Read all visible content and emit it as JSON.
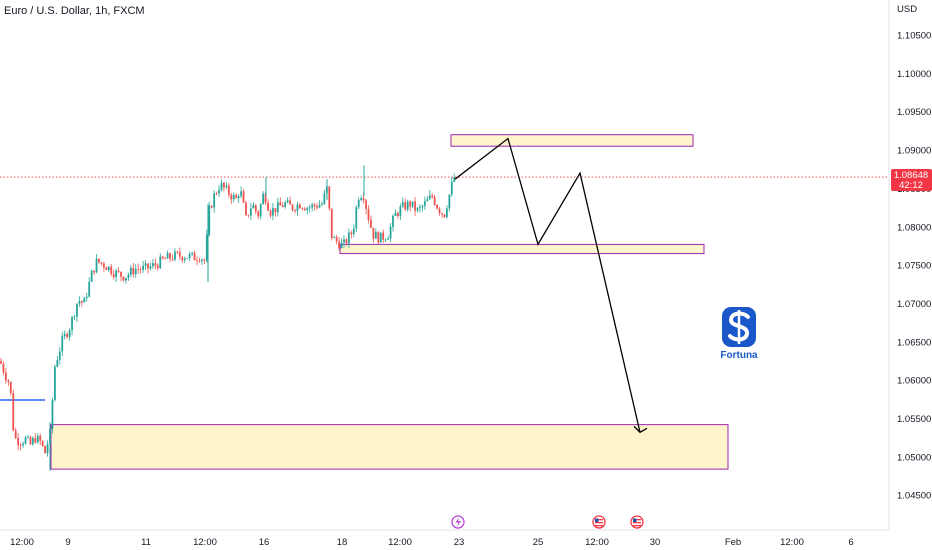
{
  "chart_data": {
    "type": "candlestick",
    "title": "Euro / U.S. Dollar, 1h, FXCM",
    "currency_label": "USD",
    "y_ticks": [
      "1.10500",
      "1.10000",
      "1.09500",
      "1.09000",
      "1.08500",
      "1.08000",
      "1.07500",
      "1.07000",
      "1.06500",
      "1.06000",
      "1.05500",
      "1.05000",
      "1.04500"
    ],
    "y_tick_values": [
      1.105,
      1.1,
      1.095,
      1.09,
      1.085,
      1.08,
      1.075,
      1.07,
      1.065,
      1.06,
      1.055,
      1.05,
      1.045
    ],
    "ylim": [
      1.0435,
      1.1095
    ],
    "x_ticks": [
      "12:00",
      "9",
      "11",
      "12:00",
      "16",
      "18",
      "12:00",
      "23",
      "25",
      "12:00",
      "30",
      "Feb",
      "12:00",
      "6"
    ],
    "last_price": {
      "value": 1.08648,
      "label": "1.08648",
      "countdown": "42:12"
    },
    "price_path": [
      [
        0,
        1.0625
      ],
      [
        6,
        1.0605
      ],
      [
        10,
        1.0595
      ],
      [
        14,
        1.0525
      ],
      [
        20,
        1.052
      ],
      [
        26,
        1.0523
      ],
      [
        30,
        1.0515
      ],
      [
        35,
        1.0525
      ],
      [
        40,
        1.052
      ],
      [
        45,
        1.0505
      ],
      [
        50,
        1.053
      ],
      [
        55,
        1.062
      ],
      [
        62,
        1.065
      ],
      [
        70,
        1.067
      ],
      [
        78,
        1.0705
      ],
      [
        84,
        1.07
      ],
      [
        92,
        1.074
      ],
      [
        97,
        1.0755
      ],
      [
        105,
        1.075
      ],
      [
        115,
        1.074
      ],
      [
        125,
        1.0735
      ],
      [
        135,
        1.0745
      ],
      [
        145,
        1.0745
      ],
      [
        155,
        1.075
      ],
      [
        165,
        1.0758
      ],
      [
        175,
        1.0762
      ],
      [
        185,
        1.0762
      ],
      [
        195,
        1.076
      ],
      [
        200,
        1.0762
      ],
      [
        205,
        1.0755
      ],
      [
        209,
        1.082
      ],
      [
        214,
        1.084
      ],
      [
        220,
        1.0855
      ],
      [
        228,
        1.0845
      ],
      [
        236,
        1.0835
      ],
      [
        240,
        1.085
      ],
      [
        246,
        1.081
      ],
      [
        252,
        1.083
      ],
      [
        258,
        1.0815
      ],
      [
        264,
        1.0845
      ],
      [
        270,
        1.082
      ],
      [
        278,
        1.0825
      ],
      [
        285,
        1.083
      ],
      [
        292,
        1.0825
      ],
      [
        300,
        1.083
      ],
      [
        308,
        1.0825
      ],
      [
        316,
        1.0828
      ],
      [
        322,
        1.083
      ],
      [
        327,
        1.085
      ],
      [
        332,
        1.0785
      ],
      [
        338,
        1.078
      ],
      [
        343,
        1.0775
      ],
      [
        348,
        1.0785
      ],
      [
        353,
        1.0795
      ],
      [
        358,
        1.084
      ],
      [
        363,
        1.0845
      ],
      [
        368,
        1.0815
      ],
      [
        373,
        1.079
      ],
      [
        380,
        1.0785
      ],
      [
        388,
        1.079
      ],
      [
        395,
        1.0815
      ],
      [
        402,
        1.0825
      ],
      [
        410,
        1.083
      ],
      [
        418,
        1.082
      ],
      [
        425,
        1.083
      ],
      [
        432,
        1.084
      ],
      [
        438,
        1.0825
      ],
      [
        444,
        1.0815
      ],
      [
        449,
        1.084
      ],
      [
        454,
        1.08648
      ]
    ],
    "zones": [
      {
        "name": "upper-zone",
        "y_top": 1.092,
        "y_bottom": 1.0905,
        "x_start": 451,
        "x_end": 693
      },
      {
        "name": "middle-zone",
        "y_top": 1.0777,
        "y_bottom": 1.0765,
        "x_start": 340,
        "x_end": 704
      },
      {
        "name": "lower-zone",
        "y_top": 1.0542,
        "y_bottom": 1.0484,
        "x_start": 51,
        "x_end": 728
      }
    ],
    "projection_path": [
      [
        455,
        1.0862
      ],
      [
        508,
        1.0915
      ],
      [
        538,
        1.0777
      ],
      [
        580,
        1.087
      ],
      [
        640,
        1.0532
      ]
    ],
    "colors": {
      "up": "#26a69a",
      "down": "#ef5350",
      "zone_fill": "#fff5cc",
      "zone_stroke": "#9c27b0",
      "price_tag": "#f23645",
      "blue_line": "#2962ff"
    },
    "event_icons": [
      "lightning-icon",
      "us-flag-icon",
      "us-flag-icon"
    ]
  },
  "logo": {
    "name": "Fortuna"
  }
}
